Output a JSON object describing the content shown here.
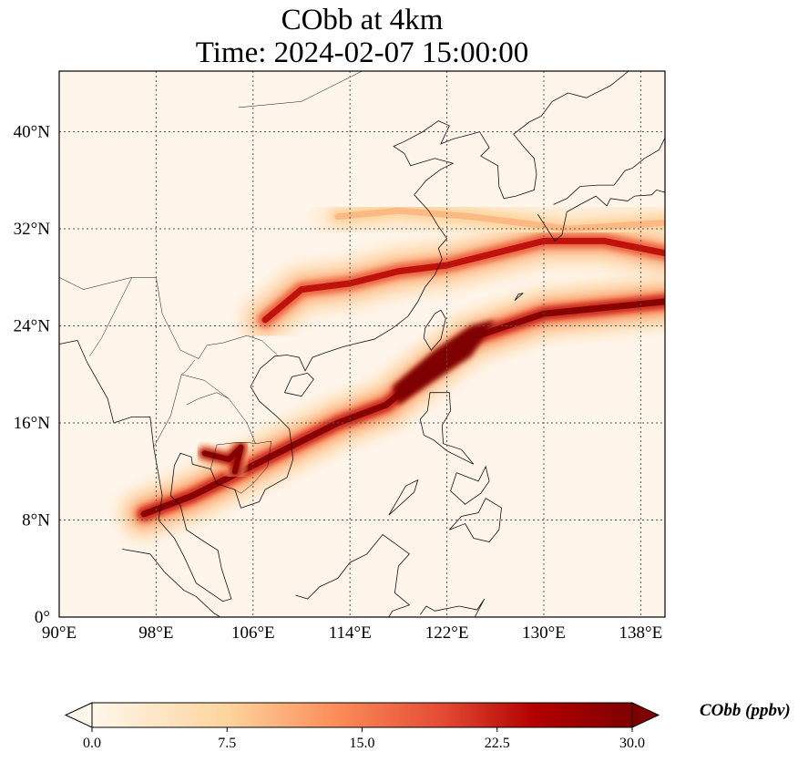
{
  "title": {
    "line1": "CObb at 4km",
    "line2": "Time: 2024-02-07 15:00:00"
  },
  "map": {
    "lon_range": [
      90,
      140
    ],
    "lat_range": [
      0,
      45
    ],
    "lon_ticks": [
      {
        "value": 90,
        "label": "90°E"
      },
      {
        "value": 98,
        "label": "98°E"
      },
      {
        "value": 106,
        "label": "106°E"
      },
      {
        "value": 114,
        "label": "114°E"
      },
      {
        "value": 122,
        "label": "122°E"
      },
      {
        "value": 130,
        "label": "130°E"
      },
      {
        "value": 138,
        "label": "138°E"
      }
    ],
    "lat_ticks": [
      {
        "value": 0,
        "label": "0°"
      },
      {
        "value": 8,
        "label": "8°N"
      },
      {
        "value": 16,
        "label": "16°N"
      },
      {
        "value": 24,
        "label": "24°N"
      },
      {
        "value": 32,
        "label": "32°N"
      },
      {
        "value": 40,
        "label": "40°N"
      }
    ],
    "gridlines": true,
    "colormap": "OrRd",
    "background_color": "#fff5eb"
  },
  "colorbar": {
    "label": "CObb (ppbv)",
    "min": 0.0,
    "max": 30.0,
    "ticks": [
      {
        "value": 0,
        "label": "0.0"
      },
      {
        "value": 7.5,
        "label": "7.5"
      },
      {
        "value": 15,
        "label": "15.0"
      },
      {
        "value": 22.5,
        "label": "22.5"
      },
      {
        "value": 30,
        "label": "30.0"
      }
    ],
    "extend": "both"
  },
  "plumes": [
    {
      "name": "main-plume-cambodia-to-taiwan",
      "peak_ppbv": 30,
      "path_lonlat": [
        [
          97,
          8.5
        ],
        [
          101,
          10
        ],
        [
          105,
          12
        ],
        [
          109,
          14
        ],
        [
          113,
          16
        ],
        [
          117,
          17.5
        ],
        [
          120,
          20
        ],
        [
          124,
          23
        ],
        [
          130,
          25
        ],
        [
          140,
          26
        ]
      ]
    },
    {
      "name": "northern-plume-to-japan",
      "peak_ppbv": 24,
      "path_lonlat": [
        [
          107,
          24.5
        ],
        [
          110,
          27
        ],
        [
          114,
          27.5
        ],
        [
          118,
          28.5
        ],
        [
          122,
          29
        ],
        [
          126,
          30
        ],
        [
          130,
          31
        ],
        [
          135,
          31
        ],
        [
          140,
          30
        ]
      ]
    },
    {
      "name": "weak-plume-yangtze",
      "peak_ppbv": 10,
      "path_lonlat": [
        [
          113,
          33
        ],
        [
          118,
          33.5
        ],
        [
          124,
          33
        ],
        [
          132,
          32
        ],
        [
          140,
          32.5
        ]
      ]
    },
    {
      "name": "cambodia-source",
      "peak_ppbv": 30,
      "path_lonlat": [
        [
          102,
          13.5
        ],
        [
          104,
          13
        ],
        [
          105,
          14
        ],
        [
          104.5,
          12
        ]
      ]
    }
  ]
}
